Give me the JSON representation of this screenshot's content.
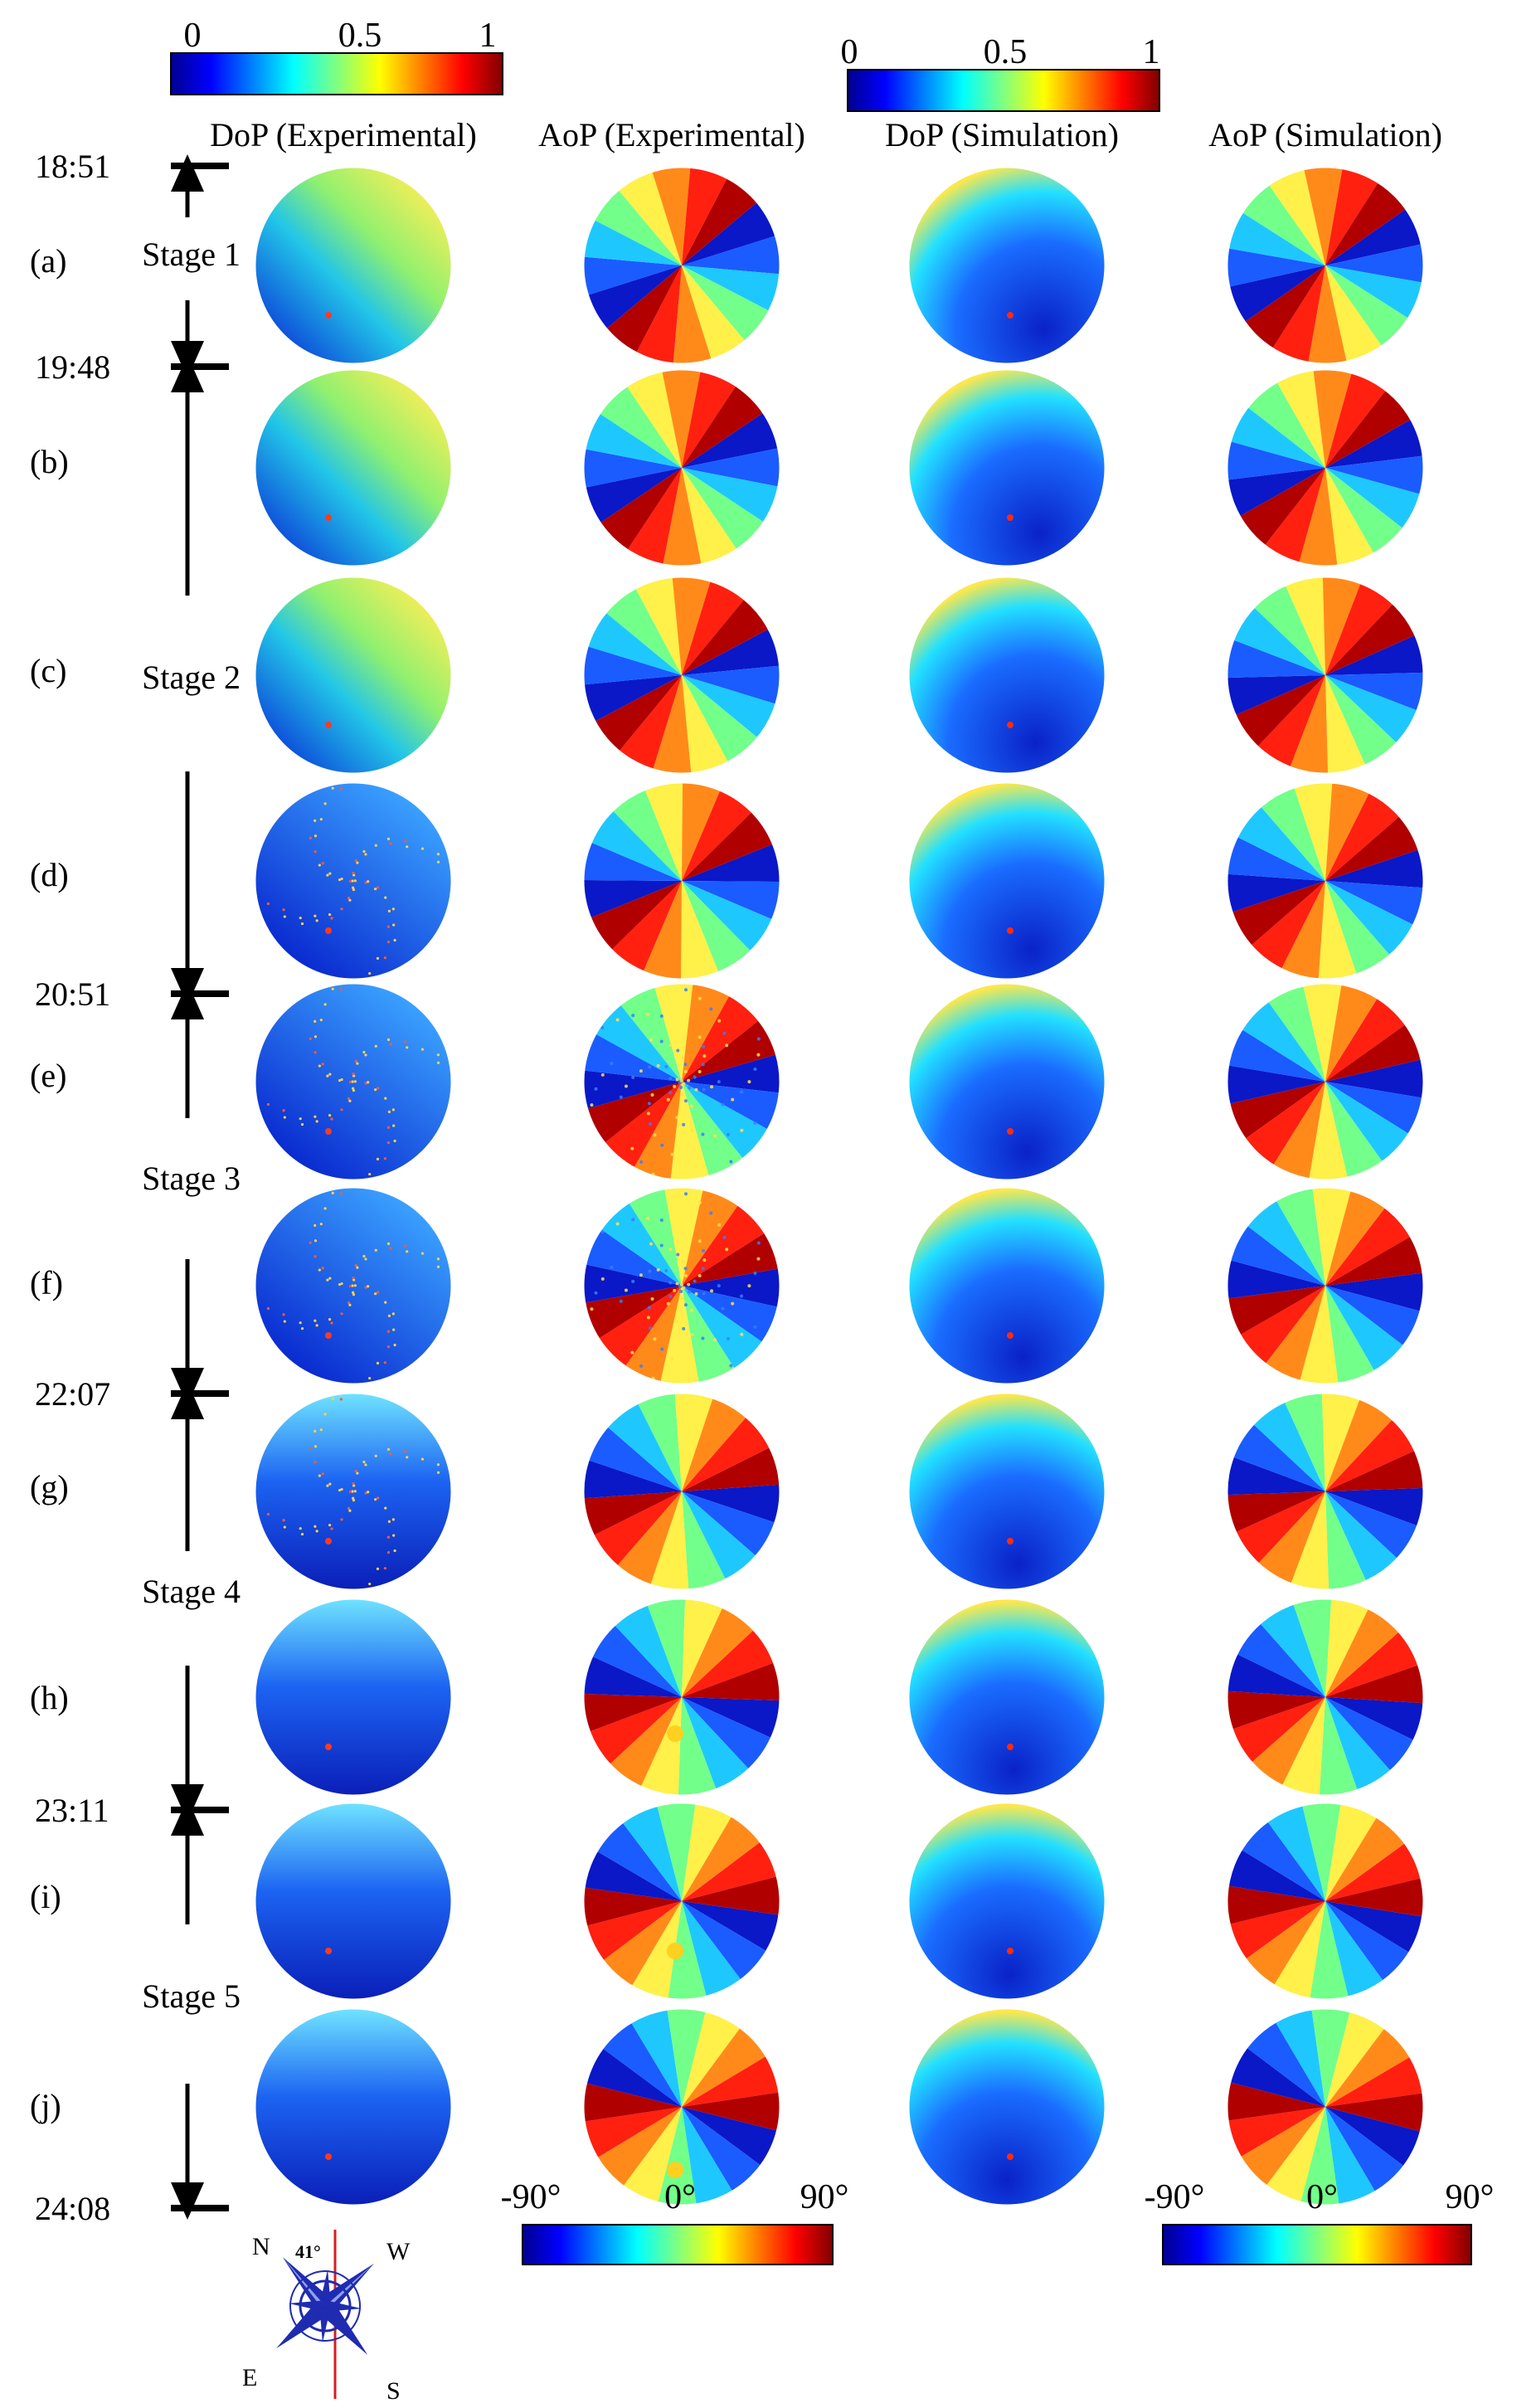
{
  "colorbar_dop_experimental": {
    "ticks": [
      "0",
      "0.5",
      "1"
    ]
  },
  "colorbar_dop_simulation": {
    "ticks": [
      "0",
      "0.5",
      "1"
    ]
  },
  "colorbar_aop_experimental": {
    "ticks": [
      "-90°",
      "0°",
      "90°"
    ]
  },
  "colorbar_aop_simulation": {
    "ticks": [
      "-90°",
      "0°",
      "90°"
    ]
  },
  "columns": [
    "DoP (Experimental)",
    "AoP (Experimental)",
    "DoP (Simulation)",
    "AoP (Simulation)"
  ],
  "rows": [
    {
      "label": "(a)"
    },
    {
      "label": "(b)"
    },
    {
      "label": "(c)"
    },
    {
      "label": "(d)"
    },
    {
      "label": "(e)"
    },
    {
      "label": "(f)"
    },
    {
      "label": "(g)"
    },
    {
      "label": "(h)"
    },
    {
      "label": "(i)"
    },
    {
      "label": "(j)"
    }
  ],
  "timeline": {
    "times": [
      "18:51",
      "19:48",
      "20:51",
      "22:07",
      "23:11",
      "24:08"
    ],
    "stages": [
      "Stage 1",
      "Stage 2",
      "Stage 3",
      "Stage 4",
      "Stage 5"
    ]
  },
  "compass": {
    "labels": {
      "north": "N",
      "west": "W",
      "east": "E",
      "south": "S"
    },
    "angle": "41°"
  },
  "colors": {
    "colormap": "jet",
    "compass_blue": "#1f2bb0",
    "compass_red": "#d62020"
  }
}
